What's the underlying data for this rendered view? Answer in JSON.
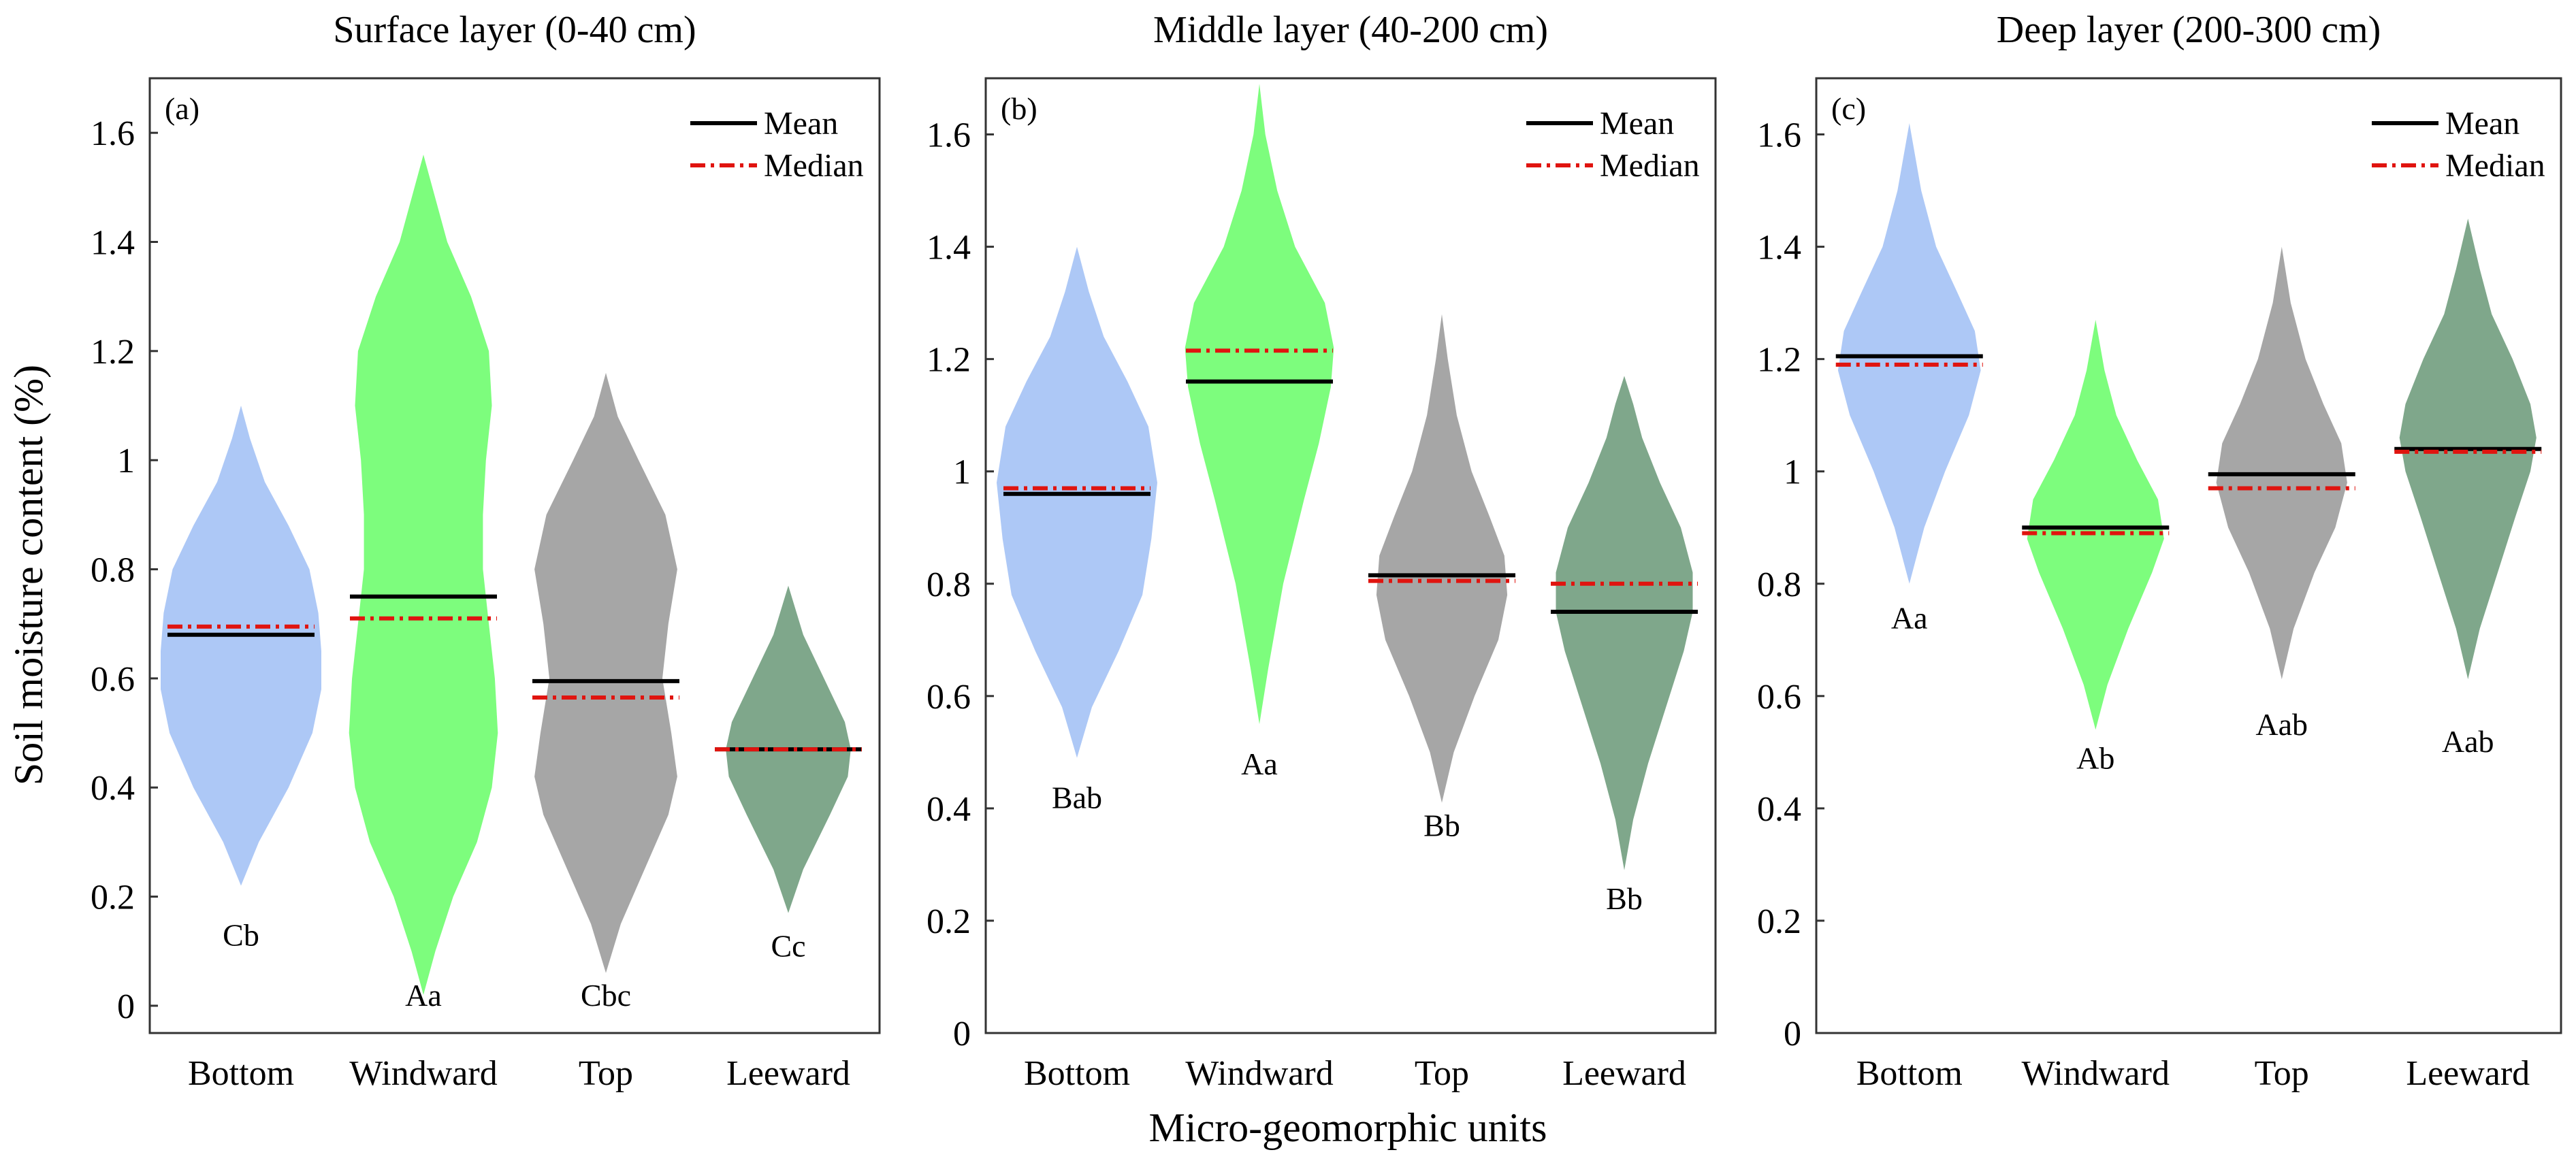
{
  "figure": {
    "ylabel": "Soil moisture content (%)",
    "xlabel": "Micro-geomorphic units",
    "legend": {
      "mean_label": "Mean",
      "median_label": "Median"
    },
    "colors": {
      "Bottom": "#adc8f6",
      "Windward": "#7dfd7d",
      "Top": "#a6a6a6",
      "Leeward": "#7fa78b",
      "mean_line": "#000000",
      "median_line": "#e0140f",
      "axis": "#333333"
    }
  },
  "chart_data": [
    {
      "type": "violin",
      "panel_label": "(a)",
      "title": "Surface layer (0-40 cm)",
      "categories": [
        "Bottom",
        "Windward",
        "Top",
        "Leeward"
      ],
      "ylim": [
        -0.05,
        1.7
      ],
      "yticks": [
        0,
        0.2,
        0.4,
        0.6,
        0.8,
        1,
        1.2,
        1.4,
        1.6
      ],
      "ytick_labels": [
        "0",
        "0.2",
        "0.4",
        "0.6",
        "0.8",
        "1",
        "1.2",
        "1.4",
        "1.6"
      ],
      "legend_position": "top-right",
      "series": [
        {
          "name": "Bottom",
          "min": 0.22,
          "max": 1.1,
          "mean": 0.68,
          "median": 0.695,
          "letters": "Cb",
          "letter_y": 0.13,
          "profile": [
            [
              0.22,
              0
            ],
            [
              0.3,
              0.06
            ],
            [
              0.4,
              0.16
            ],
            [
              0.5,
              0.24
            ],
            [
              0.58,
              0.27
            ],
            [
              0.65,
              0.27
            ],
            [
              0.72,
              0.26
            ],
            [
              0.8,
              0.23
            ],
            [
              0.88,
              0.16
            ],
            [
              0.96,
              0.08
            ],
            [
              1.04,
              0.03
            ],
            [
              1.1,
              0
            ]
          ]
        },
        {
          "name": "Windward",
          "min": 0.02,
          "max": 1.56,
          "mean": 0.75,
          "median": 0.71,
          "letters": "Aa",
          "letter_y": 0.02,
          "profile": [
            [
              0.02,
              0
            ],
            [
              0.1,
              0.04
            ],
            [
              0.2,
              0.1
            ],
            [
              0.3,
              0.18
            ],
            [
              0.4,
              0.23
            ],
            [
              0.5,
              0.25
            ],
            [
              0.6,
              0.24
            ],
            [
              0.7,
              0.22
            ],
            [
              0.8,
              0.2
            ],
            [
              0.9,
              0.2
            ],
            [
              1.0,
              0.21
            ],
            [
              1.1,
              0.23
            ],
            [
              1.2,
              0.22
            ],
            [
              1.3,
              0.16
            ],
            [
              1.4,
              0.08
            ],
            [
              1.5,
              0.03
            ],
            [
              1.56,
              0
            ]
          ]
        },
        {
          "name": "Top",
          "min": 0.06,
          "max": 1.16,
          "mean": 0.595,
          "median": 0.565,
          "letters": "Cbc",
          "letter_y": 0.02,
          "profile": [
            [
              0.06,
              0
            ],
            [
              0.15,
              0.05
            ],
            [
              0.25,
              0.13
            ],
            [
              0.35,
              0.21
            ],
            [
              0.42,
              0.24
            ],
            [
              0.5,
              0.22
            ],
            [
              0.6,
              0.19
            ],
            [
              0.7,
              0.21
            ],
            [
              0.8,
              0.24
            ],
            [
              0.9,
              0.2
            ],
            [
              1.0,
              0.11
            ],
            [
              1.08,
              0.04
            ],
            [
              1.16,
              0
            ]
          ]
        },
        {
          "name": "Leeward",
          "min": 0.17,
          "max": 0.77,
          "mean": 0.47,
          "median": 0.47,
          "letters": "Cc",
          "letter_y": 0.11,
          "profile": [
            [
              0.17,
              0
            ],
            [
              0.25,
              0.05
            ],
            [
              0.35,
              0.14
            ],
            [
              0.42,
              0.2
            ],
            [
              0.47,
              0.21
            ],
            [
              0.52,
              0.19
            ],
            [
              0.6,
              0.12
            ],
            [
              0.68,
              0.05
            ],
            [
              0.77,
              0
            ]
          ]
        }
      ]
    },
    {
      "type": "violin",
      "panel_label": "(b)",
      "title": "Middle layer (40-200 cm)",
      "categories": [
        "Bottom",
        "Windward",
        "Top",
        "Leeward"
      ],
      "ylim": [
        0,
        1.7
      ],
      "yticks": [
        0,
        0.2,
        0.4,
        0.6,
        0.8,
        1,
        1.2,
        1.4,
        1.6
      ],
      "ytick_labels": [
        "0",
        "0.2",
        "0.4",
        "0.6",
        "0.8",
        "1",
        "1.2",
        "1.4",
        "1.6"
      ],
      "legend_position": "top-right",
      "series": [
        {
          "name": "Bottom",
          "min": 0.49,
          "max": 1.4,
          "mean": 0.96,
          "median": 0.97,
          "letters": "Bab",
          "letter_y": 0.42,
          "profile": [
            [
              0.49,
              0
            ],
            [
              0.58,
              0.05
            ],
            [
              0.68,
              0.14
            ],
            [
              0.78,
              0.22
            ],
            [
              0.88,
              0.25
            ],
            [
              0.98,
              0.27
            ],
            [
              1.08,
              0.24
            ],
            [
              1.16,
              0.17
            ],
            [
              1.24,
              0.09
            ],
            [
              1.32,
              0.04
            ],
            [
              1.4,
              0
            ]
          ]
        },
        {
          "name": "Windward",
          "min": 0.55,
          "max": 1.69,
          "mean": 1.16,
          "median": 1.215,
          "letters": "Aa",
          "letter_y": 0.48,
          "profile": [
            [
              0.55,
              0
            ],
            [
              0.65,
              0.03
            ],
            [
              0.8,
              0.08
            ],
            [
              0.95,
              0.15
            ],
            [
              1.05,
              0.2
            ],
            [
              1.15,
              0.24
            ],
            [
              1.22,
              0.25
            ],
            [
              1.3,
              0.22
            ],
            [
              1.4,
              0.12
            ],
            [
              1.5,
              0.06
            ],
            [
              1.6,
              0.02
            ],
            [
              1.69,
              0
            ]
          ]
        },
        {
          "name": "Top",
          "min": 0.41,
          "max": 1.28,
          "mean": 0.815,
          "median": 0.805,
          "letters": "Bb",
          "letter_y": 0.37,
          "profile": [
            [
              0.41,
              0
            ],
            [
              0.5,
              0.04
            ],
            [
              0.6,
              0.11
            ],
            [
              0.7,
              0.19
            ],
            [
              0.78,
              0.22
            ],
            [
              0.85,
              0.21
            ],
            [
              0.92,
              0.16
            ],
            [
              1.0,
              0.1
            ],
            [
              1.1,
              0.05
            ],
            [
              1.2,
              0.02
            ],
            [
              1.28,
              0
            ]
          ]
        },
        {
          "name": "Leeward",
          "min": 0.29,
          "max": 1.17,
          "mean": 0.75,
          "median": 0.8,
          "letters": "Bb",
          "letter_y": 0.24,
          "profile": [
            [
              0.29,
              0
            ],
            [
              0.38,
              0.03
            ],
            [
              0.48,
              0.08
            ],
            [
              0.58,
              0.14
            ],
            [
              0.68,
              0.2
            ],
            [
              0.75,
              0.23
            ],
            [
              0.82,
              0.23
            ],
            [
              0.9,
              0.19
            ],
            [
              0.98,
              0.12
            ],
            [
              1.06,
              0.06
            ],
            [
              1.12,
              0.03
            ],
            [
              1.17,
              0
            ]
          ]
        }
      ]
    },
    {
      "type": "violin",
      "panel_label": "(c)",
      "title": "Deep layer (200-300 cm)",
      "categories": [
        "Bottom",
        "Windward",
        "Top",
        "Leeward"
      ],
      "ylim": [
        0,
        1.7
      ],
      "yticks": [
        0,
        0.2,
        0.4,
        0.6,
        0.8,
        1,
        1.2,
        1.4,
        1.6
      ],
      "ytick_labels": [
        "0",
        "0.2",
        "0.4",
        "0.6",
        "0.8",
        "1",
        "1.2",
        "1.4",
        "1.6"
      ],
      "legend_position": "top-right",
      "series": [
        {
          "name": "Bottom",
          "min": 0.8,
          "max": 1.62,
          "mean": 1.205,
          "median": 1.19,
          "letters": "Aa",
          "letter_y": 0.74,
          "profile": [
            [
              0.8,
              0
            ],
            [
              0.9,
              0.05
            ],
            [
              1.0,
              0.12
            ],
            [
              1.1,
              0.2
            ],
            [
              1.18,
              0.24
            ],
            [
              1.25,
              0.22
            ],
            [
              1.32,
              0.16
            ],
            [
              1.4,
              0.09
            ],
            [
              1.5,
              0.04
            ],
            [
              1.62,
              0
            ]
          ]
        },
        {
          "name": "Windward",
          "min": 0.54,
          "max": 1.27,
          "mean": 0.9,
          "median": 0.89,
          "letters": "Ab",
          "letter_y": 0.49,
          "profile": [
            [
              0.54,
              0
            ],
            [
              0.62,
              0.04
            ],
            [
              0.72,
              0.11
            ],
            [
              0.82,
              0.19
            ],
            [
              0.88,
              0.23
            ],
            [
              0.95,
              0.21
            ],
            [
              1.02,
              0.14
            ],
            [
              1.1,
              0.07
            ],
            [
              1.18,
              0.03
            ],
            [
              1.27,
              0
            ]
          ]
        },
        {
          "name": "Top",
          "min": 0.63,
          "max": 1.4,
          "mean": 0.995,
          "median": 0.97,
          "letters": "Aab",
          "letter_y": 0.55,
          "profile": [
            [
              0.63,
              0
            ],
            [
              0.72,
              0.04
            ],
            [
              0.82,
              0.11
            ],
            [
              0.9,
              0.18
            ],
            [
              0.98,
              0.22
            ],
            [
              1.05,
              0.2
            ],
            [
              1.12,
              0.14
            ],
            [
              1.2,
              0.08
            ],
            [
              1.3,
              0.03
            ],
            [
              1.4,
              0
            ]
          ]
        },
        {
          "name": "Leeward",
          "min": 0.63,
          "max": 1.45,
          "mean": 1.04,
          "median": 1.035,
          "letters": "Aab",
          "letter_y": 0.52,
          "profile": [
            [
              0.63,
              0
            ],
            [
              0.72,
              0.04
            ],
            [
              0.82,
              0.1
            ],
            [
              0.92,
              0.16
            ],
            [
              1.0,
              0.21
            ],
            [
              1.06,
              0.23
            ],
            [
              1.12,
              0.21
            ],
            [
              1.2,
              0.15
            ],
            [
              1.28,
              0.08
            ],
            [
              1.36,
              0.04
            ],
            [
              1.45,
              0
            ]
          ]
        }
      ]
    }
  ]
}
